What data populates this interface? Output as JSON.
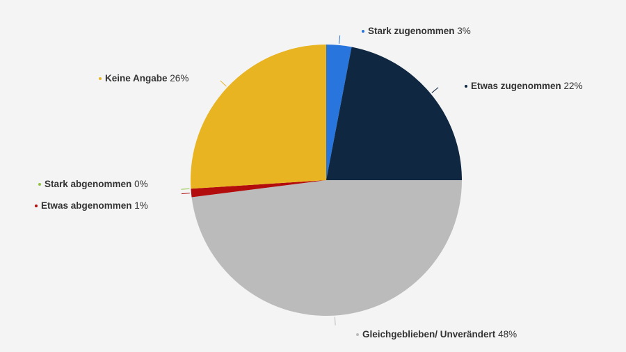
{
  "chart_data": {
    "type": "pie",
    "categories": [
      "Stark zugenommen",
      "Etwas zugenommen",
      "Gleichgeblieben/ Unverändert",
      "Etwas abgenommen",
      "Stark abgenommen",
      "Keine Angabe"
    ],
    "values": [
      3,
      22,
      48,
      1,
      0,
      26
    ],
    "value_labels": [
      "3%",
      "22%",
      "48%",
      "1%",
      "0%",
      "26%"
    ],
    "colors": [
      "#2876dd",
      "#0f2740",
      "#bbbbbb",
      "#b30c0c",
      "#8fc43f",
      "#e8b422"
    ]
  }
}
